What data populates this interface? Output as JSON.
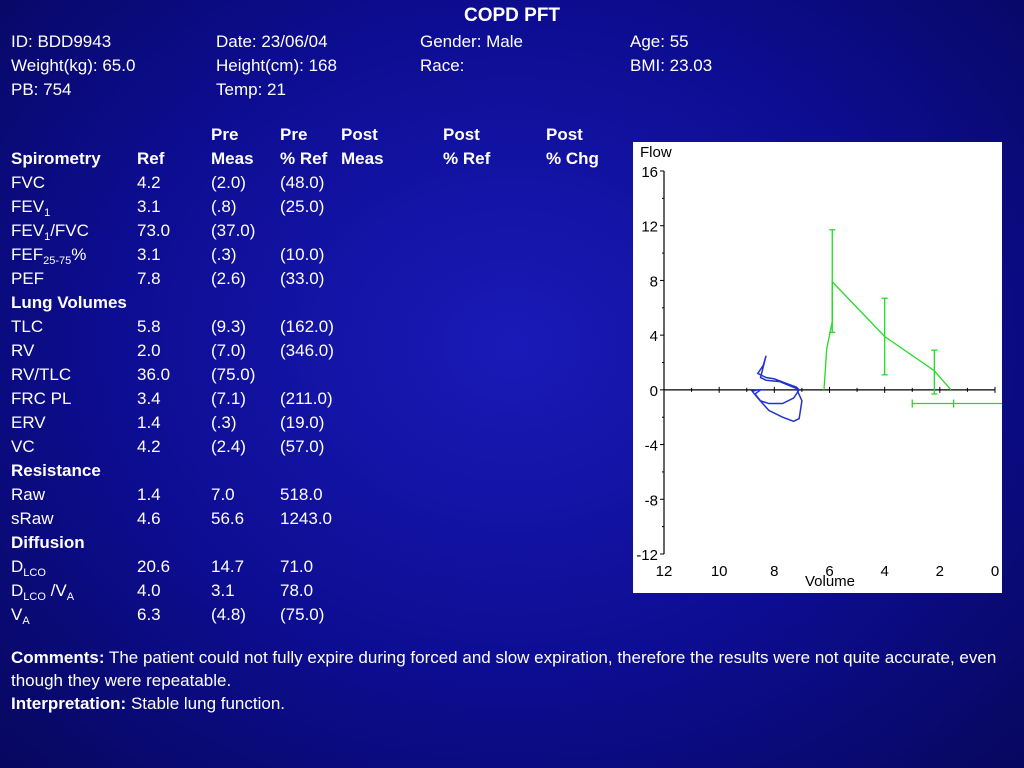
{
  "title": "COPD PFT",
  "info": {
    "id": "ID: BDD9943",
    "date": "Date: 23/06/04",
    "gender": "Gender: Male",
    "age": "Age: 55",
    "weight": "Weight(kg): 65.0",
    "height": "Height(cm): 168",
    "race": "Race:",
    "bmi": "BMI: 23.03",
    "pb": "PB: 754",
    "temp": "Temp: 21"
  },
  "table": {
    "header": {
      "pre_top": "Pre",
      "pre_meas": "Meas",
      "preref_top": "Pre",
      "preref": "% Ref",
      "post_top": "Post",
      "post_meas": "Meas",
      "postref_top": "Post",
      "postref": "% Ref",
      "postchg_top": "Post",
      "postchg": "% Chg",
      "spirometry": "Spirometry",
      "ref": "Ref"
    },
    "rows": {
      "fvc": {
        "label": "FVC",
        "ref": "4.2",
        "pre": "(2.0)",
        "preref": "(48.0)"
      },
      "fev1": {
        "label": "FEV",
        "sub": "1",
        "ref": "3.1",
        "pre": "(.8)",
        "preref": "(25.0)"
      },
      "fev1fvc": {
        "label": "FEV",
        "sub": "1",
        "label2": "/FVC",
        "ref": "73.0",
        "pre": "(37.0)",
        "preref": ""
      },
      "fef": {
        "label": "FEF",
        "sub": "25-75",
        "label2": "%",
        "ref": "3.1",
        "pre": "(.3)",
        "preref": "(10.0)"
      },
      "pef": {
        "label": "PEF",
        "ref": "7.8",
        "pre": "(2.6)",
        "preref": "(33.0)"
      },
      "lung_volumes": "Lung Volumes",
      "tlc": {
        "label": "TLC",
        "ref": "5.8",
        "pre": "(9.3)",
        "preref": "(162.0)"
      },
      "rv": {
        "label": "RV",
        "ref": "2.0",
        "pre": "(7.0)",
        "preref": "(346.0)"
      },
      "rvtlc": {
        "label": "RV/TLC",
        "ref": "36.0",
        "pre": "(75.0)",
        "preref": ""
      },
      "frc": {
        "label": "FRC PL",
        "ref": "3.4",
        "pre": "(7.1)",
        "preref": "(211.0)"
      },
      "erv": {
        "label": "ERV",
        "ref": "1.4",
        "pre": "(.3)",
        "preref": "(19.0)"
      },
      "vc": {
        "label": "VC",
        "ref": "4.2",
        "pre": "(2.4)",
        "preref": "(57.0)"
      },
      "resistance": "Resistance",
      "raw": {
        "label": "Raw",
        "ref": "1.4",
        "pre": "7.0",
        "preref": "518.0"
      },
      "sraw": {
        "label": "sRaw",
        "ref": "4.6",
        "pre": "56.6",
        "preref": "1243.0"
      },
      "diffusion": "Diffusion",
      "dlco": {
        "label": "D",
        "sub": "LCO",
        "ref": "20.6",
        "pre": "14.7",
        "preref": "71.0"
      },
      "dlcova": {
        "label": "D",
        "sub": "LCO",
        "label2": " /V",
        "sub2": "A",
        "ref": "4.0",
        "pre": "3.1",
        "preref": "78.0"
      },
      "va": {
        "label": "V",
        "sub": "A",
        "ref": "6.3",
        "pre": "(4.8)",
        "preref": "(75.0)"
      }
    }
  },
  "comments": {
    "label": "Comments:",
    "text": " The patient could not fully expire during forced and slow expiration, therefore the results were not quite accurate, even though they were repeatable."
  },
  "interpretation": {
    "label": "Interpretation:",
    "text": " Stable lung function."
  },
  "chart_data": {
    "type": "line",
    "title": "",
    "xlabel": "Volume",
    "ylabel": "Flow",
    "xlim": [
      12,
      0
    ],
    "ylim": [
      -12,
      16
    ],
    "x_ticks": [
      "12",
      "10",
      "8",
      "6",
      "4",
      "2",
      "0"
    ],
    "y_ticks": [
      "16",
      "12",
      "8",
      "4",
      "0",
      "-4",
      "-8",
      "-12"
    ],
    "colors": {
      "measured": "#2233cc",
      "predicted": "#22dd22"
    },
    "series": [
      {
        "points": [
          [
            8.3,
            2.5
          ],
          [
            8.4,
            1.8
          ],
          [
            8.6,
            1.2
          ],
          [
            8.3,
            0.9
          ],
          [
            8.0,
            0.8
          ],
          [
            7.6,
            0.5
          ],
          [
            7.2,
            0.2
          ],
          [
            7.1,
            0.0
          ],
          [
            7.3,
            -0.6
          ],
          [
            7.7,
            -1.0
          ],
          [
            8.2,
            -1.0
          ],
          [
            8.5,
            -0.8
          ],
          [
            8.7,
            -0.3
          ],
          [
            8.5,
            0.0
          ],
          [
            8.3,
            0.0
          ],
          [
            8.6,
            0.0
          ],
          [
            8.8,
            -0.1
          ],
          [
            8.6,
            -0.6
          ],
          [
            8.2,
            -1.5
          ],
          [
            7.7,
            -2.0
          ],
          [
            7.3,
            -2.3
          ],
          [
            7.1,
            -2.1
          ],
          [
            7.0,
            -0.8
          ],
          [
            7.2,
            0.1
          ],
          [
            7.8,
            0.6
          ],
          [
            8.3,
            0.7
          ],
          [
            8.5,
            0.9
          ],
          [
            8.3,
            2.5
          ]
        ]
      },
      {
        "points": [
          [
            6.2,
            0.0
          ],
          [
            6.1,
            3.0
          ],
          [
            5.9,
            5.0
          ],
          [
            5.9,
            7.9
          ],
          [
            4.0,
            3.9
          ],
          [
            2.2,
            1.4
          ],
          [
            1.6,
            0.0
          ]
        ],
        "error_bars": [
          {
            "x": 5.9,
            "y": 7.9,
            "low": 4.2,
            "high": 11.7
          },
          {
            "x": 4.0,
            "y": 3.9,
            "low": 1.1,
            "high": 6.7
          },
          {
            "x": 2.2,
            "y": 1.4,
            "low": -0.3,
            "high": 2.9
          }
        ],
        "h_error": {
          "y": -1.0,
          "x_low": 3.0,
          "x_high": -1.3
        }
      }
    ]
  }
}
